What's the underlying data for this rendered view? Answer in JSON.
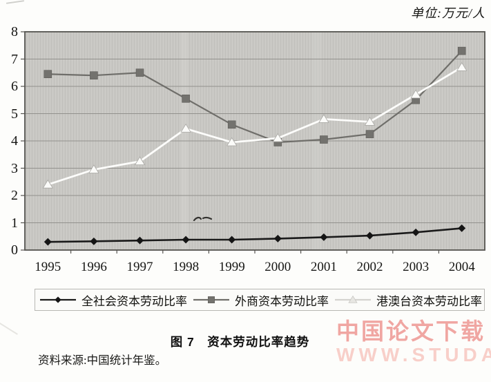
{
  "page": {
    "unit_label": "单位:万元/人",
    "caption": "图 7　资本劳动比率趋势",
    "source_note": "资料来源:中国统计年鉴。"
  },
  "watermark": {
    "line1": "中国论文下载",
    "line2": "WWW.STUDA.",
    "color_line1": "#f0a6a2",
    "color_line2": "#f8cfc9"
  },
  "chart_data": {
    "type": "line",
    "title": "图 7 资本劳动比率趋势",
    "unit": "万元/人",
    "categories": [
      "1995",
      "1996",
      "1997",
      "1998",
      "1999",
      "2000",
      "2001",
      "2002",
      "2003",
      "2004"
    ],
    "series": [
      {
        "name": "全社会资本劳动比率",
        "marker": "diamond",
        "color": "#1a1a1a",
        "values": [
          0.3,
          0.32,
          0.35,
          0.38,
          0.38,
          0.42,
          0.47,
          0.53,
          0.65,
          0.8
        ]
      },
      {
        "name": "外商资本劳动比率",
        "marker": "square",
        "color": "#6f6e6a",
        "values": [
          6.45,
          6.4,
          6.5,
          5.55,
          4.6,
          3.95,
          4.05,
          4.25,
          5.5,
          7.3
        ]
      },
      {
        "name": "港澳台资本劳动比率",
        "marker": "triangle",
        "color": "#fdfdfb",
        "values": [
          2.4,
          2.95,
          3.25,
          4.45,
          3.95,
          4.1,
          4.8,
          4.7,
          5.7,
          6.7
        ]
      }
    ],
    "ylim": [
      0,
      8
    ],
    "yticks": [
      0,
      1,
      2,
      3,
      4,
      5,
      6,
      7,
      8
    ],
    "grid": "horizontal-only",
    "plot_bg": "#c7c6c2",
    "legend_position": "bottom"
  }
}
